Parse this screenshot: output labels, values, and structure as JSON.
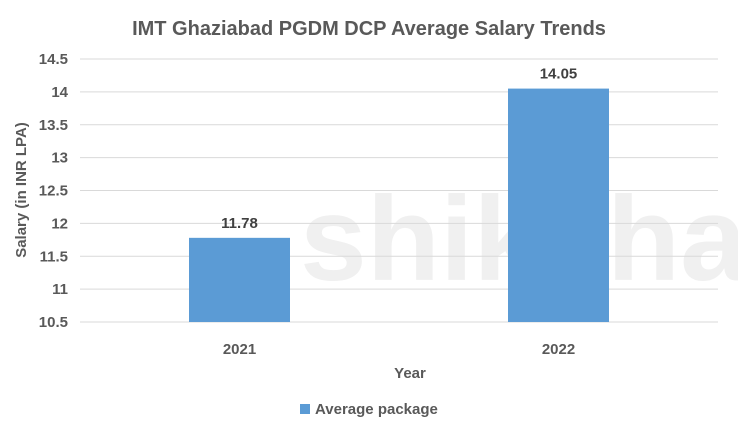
{
  "chart_data": {
    "type": "bar",
    "title": "IMT Ghaziabad PGDM DCP Average Salary Trends",
    "categories": [
      "2021",
      "2022"
    ],
    "series": [
      {
        "name": "Average package",
        "values": [
          11.78,
          14.05
        ],
        "color": "#5b9bd5"
      }
    ],
    "data_labels": [
      "11.78",
      "14.05"
    ],
    "xlabel": "Year",
    "ylabel": "Salary (in INR LPA)",
    "ylim": [
      10.5,
      14.5
    ],
    "yticks": [
      "10.5",
      "11",
      "11.5",
      "12",
      "12.5",
      "13",
      "13.5",
      "14",
      "14.5"
    ],
    "grid": true,
    "legend_position": "bottom"
  },
  "watermark": "shiksha"
}
